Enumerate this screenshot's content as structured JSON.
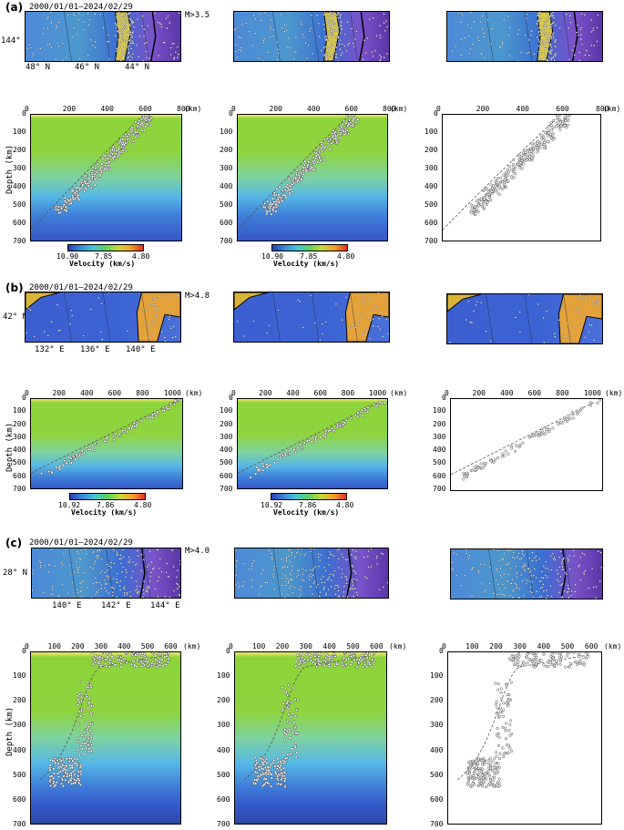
{
  "panels": [
    {
      "label": "(a)",
      "date_range": "2000/01/01–2024/02/29",
      "magnitude": "M>3.5",
      "map_lat": "144° E",
      "map_lon": [
        "48° N",
        "46° N",
        "44° N"
      ],
      "x_ticks": [
        "0",
        "200",
        "400",
        "600",
        "800"
      ],
      "x_unit": "(km)",
      "y_ticks": [
        "0",
        "100",
        "200",
        "300",
        "400",
        "500",
        "600",
        "700"
      ],
      "ylabel": "Depth (km)",
      "colorbar_ticks": [
        "10.90",
        "7.85",
        "4.80"
      ],
      "colorbar_label": "Velocity (km/s)"
    },
    {
      "label": "(b)",
      "date_range": "2000/01/01–2024/02/29",
      "magnitude": "M>4.8",
      "map_lat": "42° N",
      "map_lon": [
        "132° E",
        "136° E",
        "140° E"
      ],
      "x_ticks": [
        "0",
        "200",
        "400",
        "600",
        "800",
        "1000"
      ],
      "x_unit": "(km)",
      "y_ticks": [
        "0",
        "100",
        "200",
        "300",
        "400",
        "500",
        "600",
        "700"
      ],
      "ylabel": "Depth (km)",
      "colorbar_ticks": [
        "10.92",
        "7.86",
        "4.80"
      ],
      "colorbar_label": "Velocity (km/s)"
    },
    {
      "label": "(c)",
      "date_range": "2000/01/01–2024/02/29",
      "magnitude": "M>4.0",
      "map_lat": "28° N",
      "map_lon": [
        "140° E",
        "142° E",
        "144° E"
      ],
      "x_ticks": [
        "0",
        "100",
        "200",
        "300",
        "400",
        "500",
        "600"
      ],
      "x_unit": "(km)",
      "y_ticks": [
        "0",
        "100",
        "200",
        "300",
        "400",
        "500",
        "600",
        "700"
      ],
      "ylabel": "Depth (km)",
      "colorbar_ticks": [],
      "colorbar_label": ""
    }
  ]
}
